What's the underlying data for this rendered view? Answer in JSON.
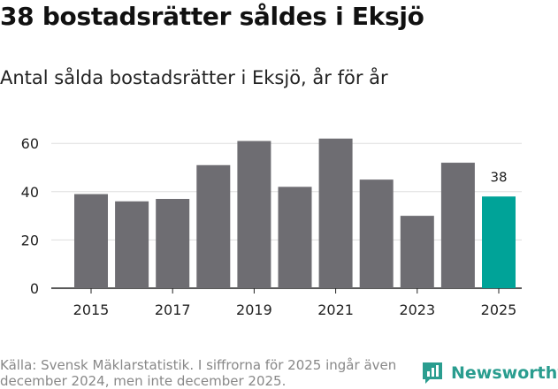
{
  "title": "38 bostadsrätter såldes i Eksjö",
  "subtitle": "Antal sålda bostadsrätter i Eksjö, år för år",
  "footer": "Källa: Svensk Mäklarstatistik. I siffrorna för 2025 ingår även december 2024, men inte december 2025.",
  "brand": "Newsworthy",
  "colors": {
    "bar": "#6e6d72",
    "highlight": "#00a398",
    "grid": "#dddddd",
    "brand": "#2a9d8f"
  },
  "chart_data": {
    "type": "bar",
    "title": "Antal sålda bostadsrätter i Eksjö, år för år",
    "xlabel": "",
    "ylabel": "",
    "categories": [
      "2015",
      "2016",
      "2017",
      "2018",
      "2019",
      "2020",
      "2021",
      "2022",
      "2023",
      "2024",
      "2025"
    ],
    "values": [
      39,
      36,
      37,
      51,
      61,
      42,
      62,
      45,
      30,
      52,
      38
    ],
    "x_tick_labels": [
      "2015",
      "2017",
      "2019",
      "2021",
      "2023",
      "2025"
    ],
    "y_ticks": [
      0,
      20,
      40,
      60
    ],
    "ylim": [
      0,
      65
    ],
    "highlight_index": 10,
    "data_label": {
      "index": 10,
      "text": "38"
    },
    "grid": true
  }
}
